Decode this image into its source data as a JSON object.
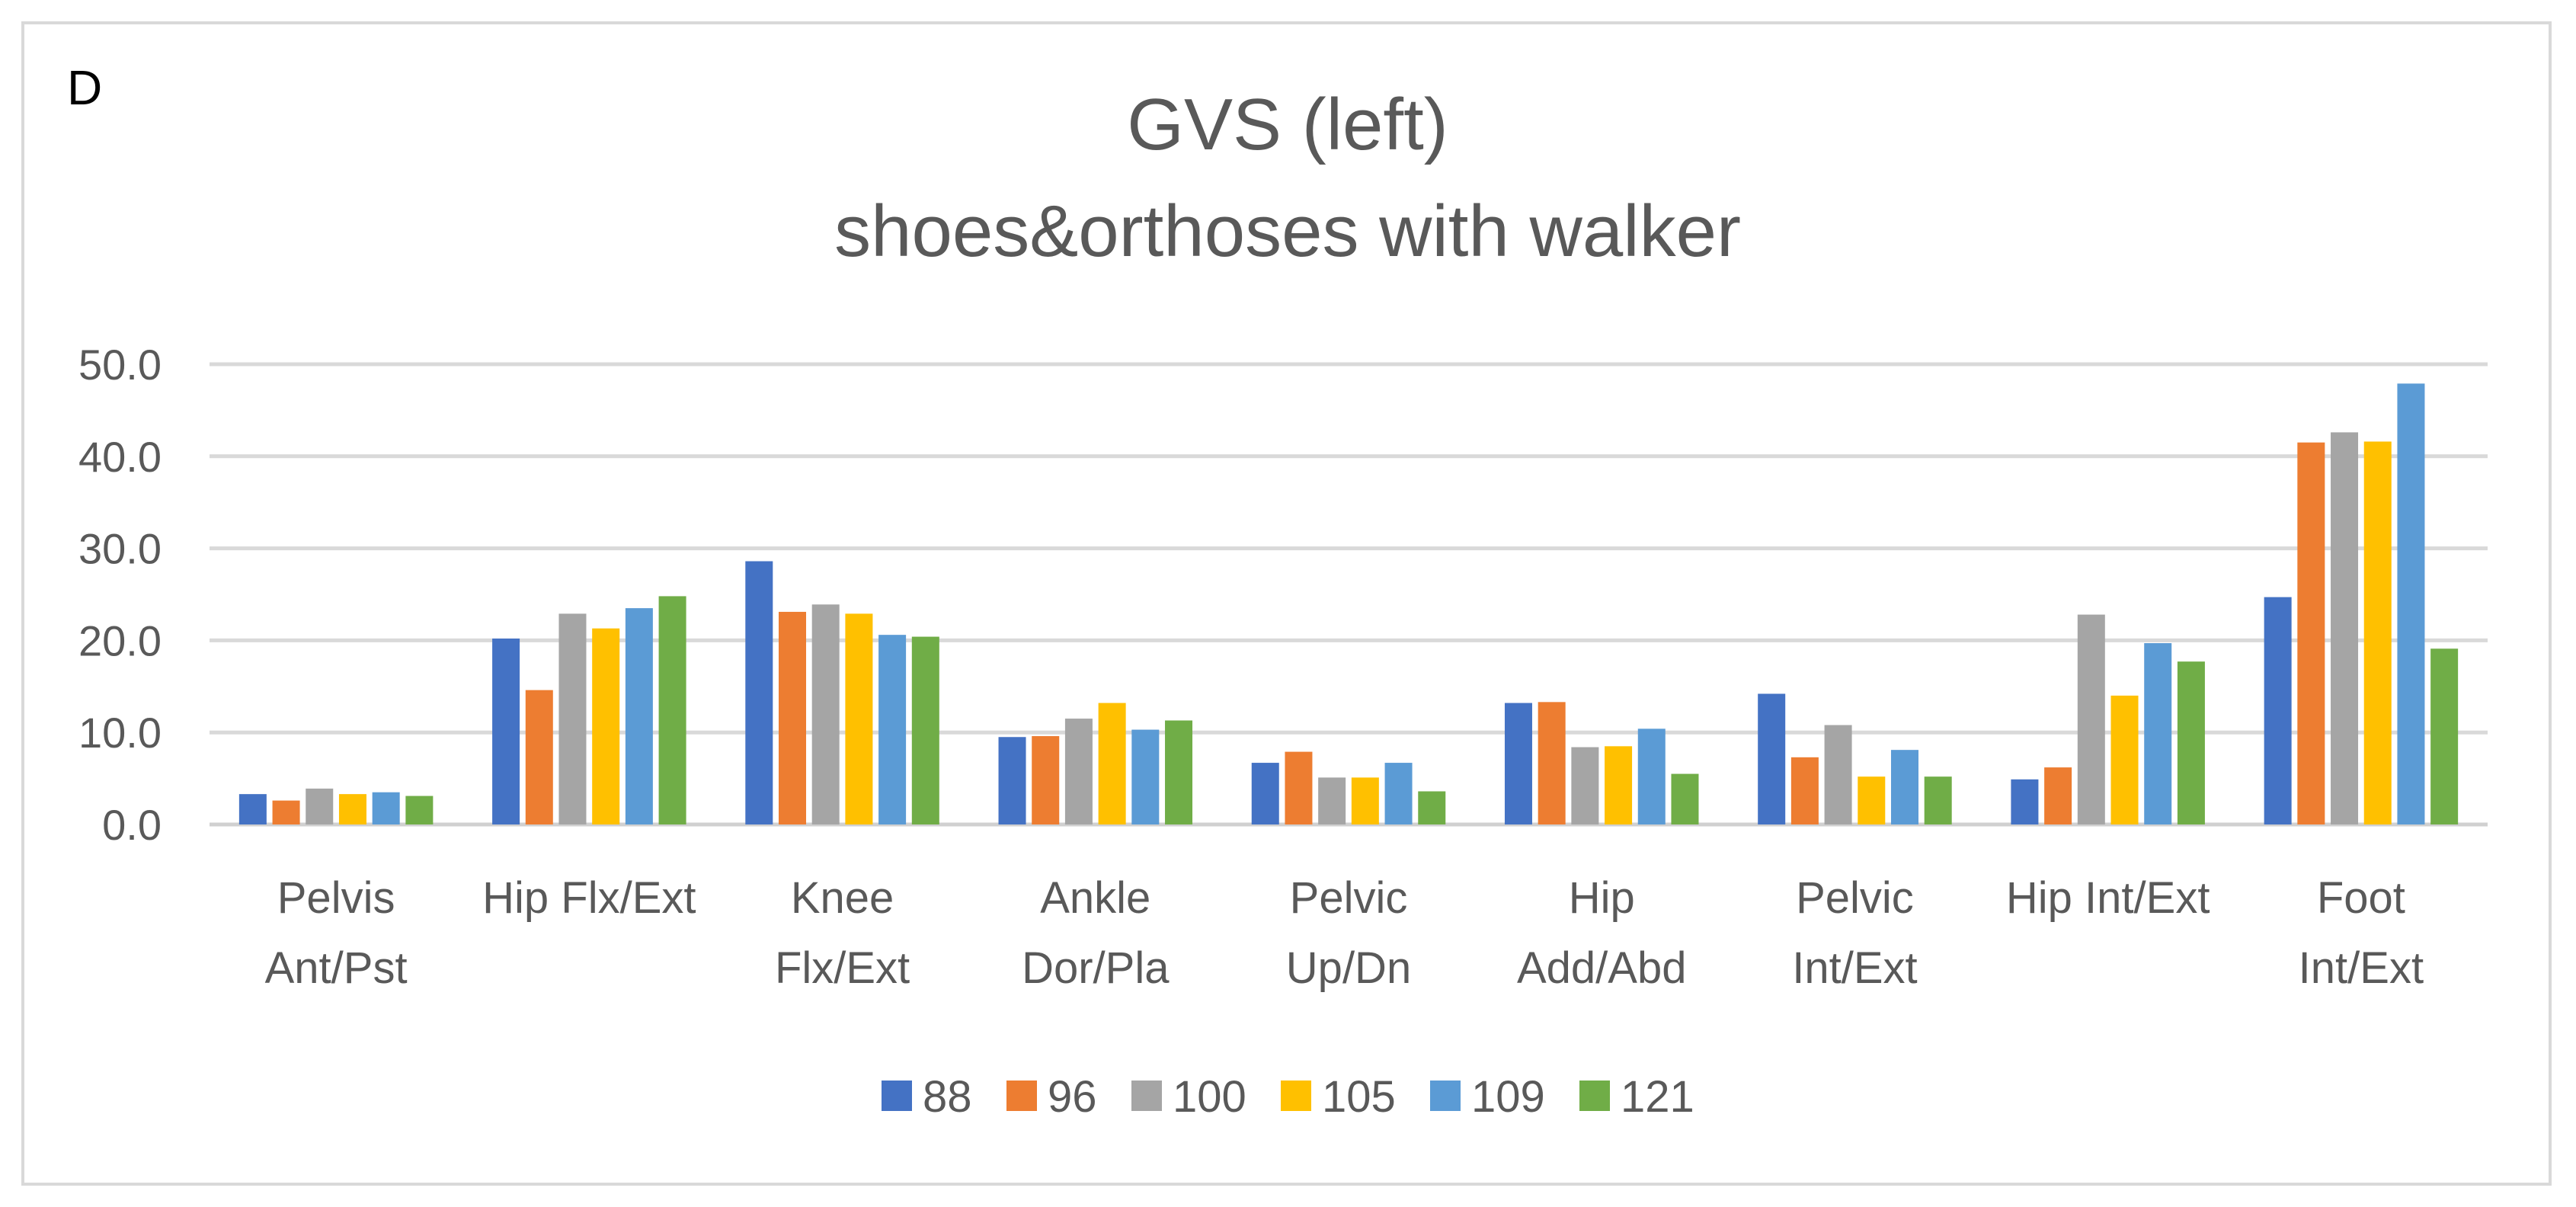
{
  "panel_label": "D",
  "chart_data": {
    "type": "bar",
    "title": "GVS (left)",
    "subtitle": "shoes&orthoses with walker",
    "xlabel": "",
    "ylabel": "",
    "ylim": [
      0,
      50
    ],
    "yticks": [
      "0.0",
      "10.0",
      "20.0",
      "30.0",
      "40.0",
      "50.0"
    ],
    "grid": true,
    "legend_position": "bottom",
    "categories": [
      [
        "Pelvis",
        "Ant/Pst"
      ],
      [
        "Hip Flx/Ext"
      ],
      [
        "Knee",
        "Flx/Ext"
      ],
      [
        "Ankle",
        "Dor/Pla"
      ],
      [
        "Pelvic",
        "Up/Dn"
      ],
      [
        "Hip",
        "Add/Abd"
      ],
      [
        "Pelvic",
        "Int/Ext"
      ],
      [
        "Hip Int/Ext"
      ],
      [
        "Foot",
        "Int/Ext"
      ]
    ],
    "series": [
      {
        "name": "88",
        "color": "#4472c4",
        "values": [
          3.3,
          20.2,
          28.6,
          9.5,
          6.7,
          13.2,
          14.2,
          4.9,
          24.7
        ]
      },
      {
        "name": "96",
        "color": "#ed7d31",
        "values": [
          2.6,
          14.6,
          23.1,
          9.6,
          7.9,
          13.3,
          7.3,
          6.2,
          41.5
        ]
      },
      {
        "name": "100",
        "color": "#a5a5a5",
        "values": [
          3.9,
          22.9,
          23.9,
          11.5,
          5.1,
          8.4,
          10.8,
          22.8,
          42.6
        ]
      },
      {
        "name": "105",
        "color": "#ffc000",
        "values": [
          3.3,
          21.3,
          22.9,
          13.2,
          5.1,
          8.5,
          5.2,
          14.0,
          41.6
        ]
      },
      {
        "name": "109",
        "color": "#5b9bd5",
        "values": [
          3.5,
          23.5,
          20.6,
          10.3,
          6.7,
          10.4,
          8.1,
          19.7,
          47.9
        ]
      },
      {
        "name": "121",
        "color": "#70ad47",
        "values": [
          3.1,
          24.8,
          20.4,
          11.3,
          3.6,
          5.5,
          5.2,
          17.7,
          19.1
        ]
      }
    ]
  }
}
